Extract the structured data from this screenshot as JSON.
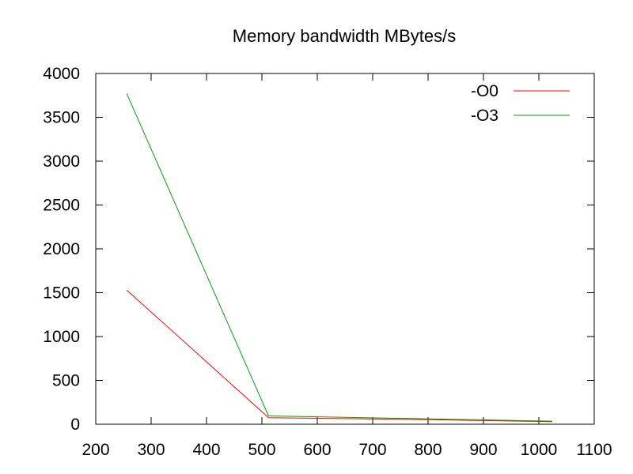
{
  "chart_data": {
    "type": "line",
    "title": "Memory bandwidth MBytes/s",
    "xlabel": "",
    "ylabel": "",
    "xlim": [
      200,
      1100
    ],
    "ylim": [
      0,
      4000
    ],
    "x_ticks": [
      "200",
      "300",
      "400",
      "500",
      "600",
      "700",
      "800",
      "900",
      "1000",
      "1100"
    ],
    "y_ticks": [
      "0",
      "500",
      "1000",
      "1500",
      "2000",
      "2500",
      "3000",
      "3500",
      "4000"
    ],
    "grid": false,
    "legend_position": "top-right",
    "series": [
      {
        "name": "-O0",
        "color": "#ff0000",
        "x": [
          256,
          512,
          768,
          1024
        ],
        "y": [
          1530,
          75,
          55,
          30
        ]
      },
      {
        "name": "-O3",
        "color": "#00a000",
        "x": [
          256,
          512,
          768,
          1024
        ],
        "y": [
          3770,
          95,
          65,
          35
        ]
      }
    ]
  }
}
